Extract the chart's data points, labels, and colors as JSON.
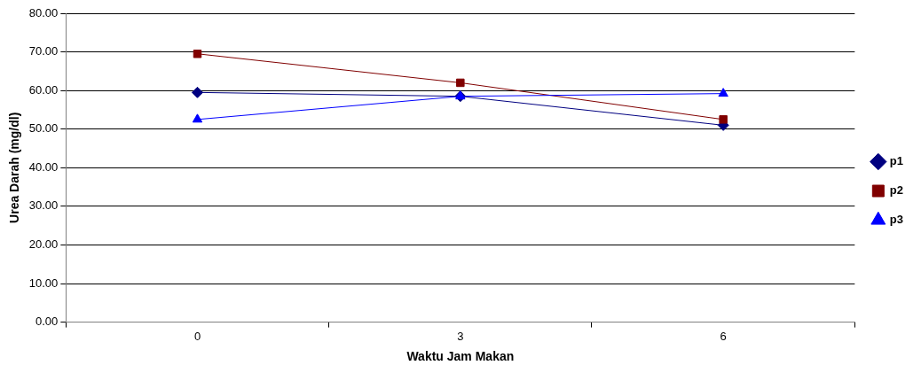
{
  "chart_data": {
    "type": "line",
    "xlabel": "Waktu Jam Makan",
    "ylabel": "Urea Darah (mg/dl)",
    "categories": [
      "0",
      "3",
      "6"
    ],
    "series": [
      {
        "name": "p1",
        "color": "#000080",
        "marker": "diamond",
        "values": [
          59.5,
          58.5,
          51.0
        ]
      },
      {
        "name": "p2",
        "color": "#800000",
        "marker": "square",
        "values": [
          69.5,
          62.0,
          52.5
        ]
      },
      {
        "name": "p3",
        "color": "#0000ff",
        "marker": "triangle",
        "values": [
          52.5,
          58.5,
          59.2
        ]
      }
    ],
    "ylim": [
      0,
      80
    ],
    "yticks": [
      {
        "value": 0,
        "label": "0.00"
      },
      {
        "value": 10,
        "label": "10.00"
      },
      {
        "value": 20,
        "label": "20.00"
      },
      {
        "value": 30,
        "label": "30.00"
      },
      {
        "value": 40,
        "label": "40.00"
      },
      {
        "value": 50,
        "label": "50.00"
      },
      {
        "value": 60,
        "label": "60.00"
      },
      {
        "value": 70,
        "label": "70.00"
      },
      {
        "value": 80,
        "label": "80.00"
      }
    ],
    "grid": "y",
    "legend": "right"
  }
}
